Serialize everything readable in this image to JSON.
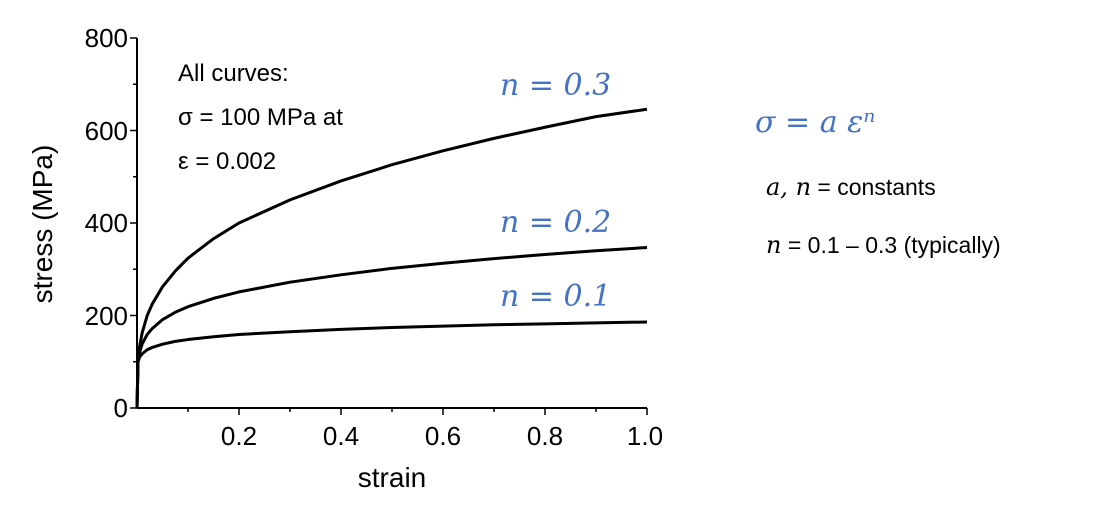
{
  "chart_data": {
    "type": "line",
    "xlabel": "strain",
    "ylabel": "stress (MPa)",
    "xlim": [
      0,
      1.0
    ],
    "ylim": [
      0,
      800
    ],
    "x_ticks": [
      "0.2",
      "0.4",
      "0.6",
      "0.8",
      "1.0"
    ],
    "y_ticks": [
      "0",
      "200",
      "400",
      "600",
      "800"
    ],
    "grid": false,
    "series": [
      {
        "name": "n = 0.3",
        "x": [
          0,
          0.002,
          0.005,
          0.01,
          0.02,
          0.03,
          0.05,
          0.075,
          0.1,
          0.15,
          0.2,
          0.3,
          0.4,
          0.5,
          0.6,
          0.7,
          0.8,
          0.9,
          1.0
        ],
        "y": [
          0,
          100,
          132,
          162,
          200,
          225,
          262,
          296,
          324,
          366,
          400,
          450,
          491,
          526,
          556,
          583,
          607,
          630,
          646
        ]
      },
      {
        "name": "n = 0.2",
        "x": [
          0,
          0.002,
          0.005,
          0.01,
          0.02,
          0.03,
          0.05,
          0.075,
          0.1,
          0.15,
          0.2,
          0.3,
          0.4,
          0.5,
          0.6,
          0.7,
          0.8,
          0.9,
          1.0
        ],
        "y": [
          0,
          100,
          120,
          138,
          159,
          172,
          191,
          207,
          219,
          237,
          251,
          272,
          288,
          302,
          313,
          323,
          332,
          340,
          347
        ]
      },
      {
        "name": "n = 0.1",
        "x": [
          0,
          0.002,
          0.005,
          0.01,
          0.02,
          0.03,
          0.05,
          0.075,
          0.1,
          0.15,
          0.2,
          0.3,
          0.4,
          0.5,
          0.6,
          0.7,
          0.8,
          0.9,
          1.0
        ],
        "y": [
          0,
          100,
          110,
          117,
          126,
          131,
          138,
          144,
          148,
          154,
          159,
          165,
          170,
          174,
          177,
          180,
          182,
          184,
          186
        ]
      }
    ],
    "annotation": {
      "line1": "All curves:",
      "line2": "σ = 100 MPa  at",
      "line3": "ε = 0.002"
    }
  },
  "formula": {
    "main": "σ = a εⁿ",
    "def1_vars": "a, n",
    "def1_text": " = constants",
    "def2_var": "n",
    "def2_text": " = 0.1 – 0.3 (typically)"
  },
  "colors": {
    "curve": "#000000",
    "accent": "#4472c4"
  }
}
